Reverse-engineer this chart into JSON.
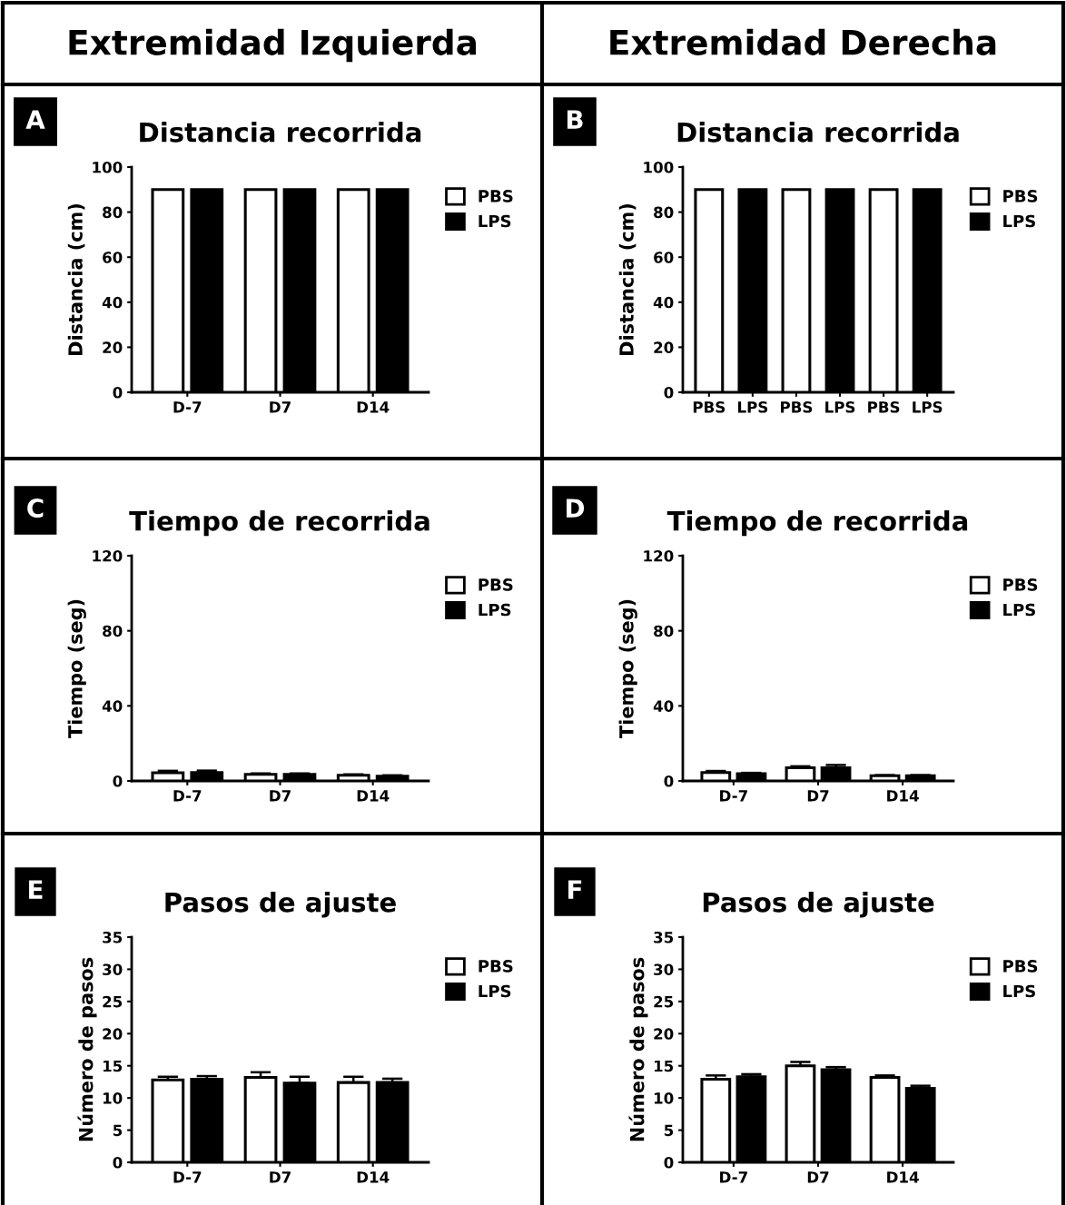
{
  "chart_data": [
    {
      "type": "bar",
      "title": "Distancia recorrida",
      "ylabel": "Distancia (cm)",
      "annotations": [
        "Extremidad Izquierda",
        "A"
      ],
      "categories": [
        "D-7",
        "D7",
        "D14"
      ],
      "ylim": [
        0,
        100
      ],
      "yticks": [
        0,
        20,
        40,
        60,
        80,
        100
      ],
      "legend": "top right",
      "series": [
        {
          "name": "PBS",
          "color": "#ffffff",
          "values": [
            90,
            90,
            90
          ]
        },
        {
          "name": "LPS",
          "color": "#000000",
          "values": [
            90,
            90,
            90
          ]
        }
      ]
    },
    {
      "type": "bar",
      "title": "Distancia recorrida",
      "ylabel": "Distancia (cm)",
      "annotations": [
        "Extremidad Derecha",
        "B"
      ],
      "categories": [
        "PBS",
        "LPS",
        "PBS",
        "LPS",
        "PBS",
        "LPS"
      ],
      "ylim": [
        0,
        100
      ],
      "yticks": [
        0,
        20,
        40,
        60,
        80,
        100
      ],
      "legend": "top right",
      "series": [
        {
          "name": "PBS",
          "color": "#ffffff",
          "values": [
            90,
            null,
            90,
            null,
            90,
            null
          ]
        },
        {
          "name": "LPS",
          "color": "#000000",
          "values": [
            null,
            90,
            null,
            90,
            null,
            90
          ]
        }
      ]
    },
    {
      "type": "bar",
      "title": "Tiempo de recorrida",
      "ylabel": "Tiempo (seg)",
      "annotations": [
        "C"
      ],
      "categories": [
        "D-7",
        "D7",
        "D14"
      ],
      "ylim": [
        0,
        120
      ],
      "yticks": [
        0,
        40,
        80,
        120
      ],
      "legend": "top right",
      "series": [
        {
          "name": "PBS",
          "color": "#ffffff",
          "values": [
            4.4,
            3.5,
            3.0
          ],
          "errors": [
            [
              4.4,
              5.4
            ],
            [
              3.5,
              4.0
            ],
            [
              3.0,
              3.5
            ]
          ]
        },
        {
          "name": "LPS",
          "color": "#000000",
          "values": [
            4.5,
            3.5,
            2.5
          ],
          "errors": [
            [
              4.5,
              5.5
            ],
            [
              3.5,
              4.0
            ],
            [
              2.5,
              3.0
            ]
          ]
        }
      ]
    },
    {
      "type": "bar",
      "title": "Tiempo de recorrida",
      "ylabel": "Tiempo (seg)",
      "annotations": [
        "D"
      ],
      "categories": [
        "D-7",
        "D7",
        "D14"
      ],
      "ylim": [
        0,
        120
      ],
      "yticks": [
        0,
        40,
        80,
        120
      ],
      "legend": "top right",
      "series": [
        {
          "name": "PBS",
          "color": "#ffffff",
          "values": [
            4.5,
            7.0,
            2.8
          ],
          "errors": [
            [
              4.5,
              5.3
            ],
            [
              7.0,
              7.8
            ],
            [
              2.8,
              3.1
            ]
          ]
        },
        {
          "name": "LPS",
          "color": "#000000",
          "values": [
            3.8,
            7.0,
            2.8
          ],
          "errors": [
            [
              3.8,
              4.3
            ],
            [
              7.0,
              8.5
            ],
            [
              2.8,
              3.1
            ]
          ]
        }
      ]
    },
    {
      "type": "bar",
      "title": "Pasos de ajuste",
      "ylabel": "Número de pasos",
      "annotations": [
        "E"
      ],
      "categories": [
        "D-7",
        "D7",
        "D14"
      ],
      "ylim": [
        0,
        35
      ],
      "yticks": [
        0,
        5,
        10,
        15,
        20,
        25,
        30,
        35
      ],
      "legend": "top right",
      "series": [
        {
          "name": "PBS",
          "color": "#ffffff",
          "values": [
            12.8,
            13.2,
            12.4
          ],
          "errors": [
            [
              12.8,
              13.3
            ],
            [
              13.2,
              14.0
            ],
            [
              12.4,
              13.3
            ]
          ]
        },
        {
          "name": "LPS",
          "color": "#000000",
          "values": [
            12.9,
            12.3,
            12.4
          ],
          "errors": [
            [
              12.9,
              13.4
            ],
            [
              12.3,
              13.3
            ],
            [
              12.4,
              13.0
            ]
          ]
        }
      ]
    },
    {
      "type": "bar",
      "title": "Pasos de ajuste",
      "ylabel": "Número de pasos",
      "annotations": [
        "F"
      ],
      "categories": [
        "D-7",
        "D7",
        "D14"
      ],
      "ylim": [
        0,
        35
      ],
      "yticks": [
        0,
        5,
        10,
        15,
        20,
        25,
        30,
        35
      ],
      "legend": "top right",
      "series": [
        {
          "name": "PBS",
          "color": "#ffffff",
          "values": [
            12.9,
            15.0,
            13.2
          ],
          "errors": [
            [
              12.9,
              13.5
            ],
            [
              15.0,
              15.6
            ],
            [
              13.2,
              13.5
            ]
          ]
        },
        {
          "name": "LPS",
          "color": "#000000",
          "values": [
            13.3,
            14.4,
            11.5
          ],
          "errors": [
            [
              13.3,
              13.7
            ],
            [
              14.4,
              14.8
            ],
            [
              11.5,
              11.9
            ]
          ]
        }
      ]
    }
  ]
}
